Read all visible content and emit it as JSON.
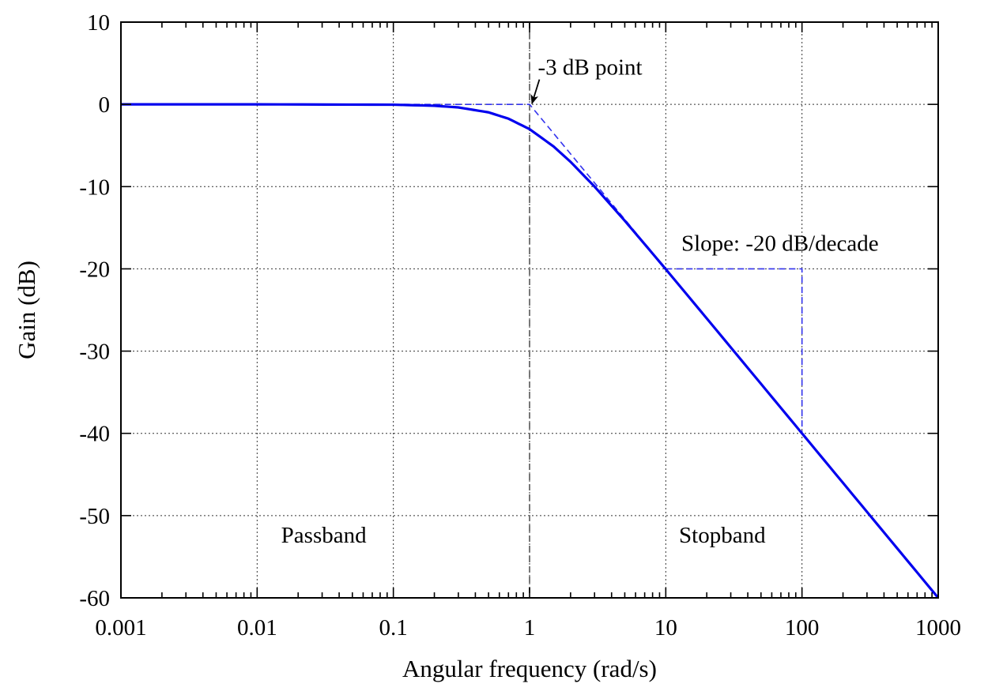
{
  "chart_data": {
    "type": "line",
    "xscale": "log",
    "xlabel": "Angular frequency (rad/s)",
    "ylabel": "Gain (dB)",
    "xlim": [
      0.001,
      1000
    ],
    "ylim": [
      -60,
      10
    ],
    "xticks": [
      0.001,
      0.01,
      0.1,
      1,
      10,
      100,
      1000
    ],
    "xtick_labels": [
      "0.001",
      "0.01",
      "0.1",
      "1",
      "10",
      "100",
      "1000"
    ],
    "yticks": [
      10,
      0,
      -10,
      -20,
      -30,
      -40,
      -50,
      -60
    ],
    "ytick_labels": [
      "10",
      "0",
      "-10",
      "-20",
      "-30",
      "-40",
      "-50",
      "-60"
    ],
    "grid": true,
    "series": [
      {
        "color": "#0000ee",
        "style": "solid",
        "x": [
          0.001,
          0.01,
          0.1,
          0.2,
          0.3,
          0.5,
          0.7,
          1,
          1.5,
          2,
          3,
          5,
          7,
          10,
          20,
          50,
          100,
          200,
          500,
          1000
        ],
        "y": [
          0,
          0,
          -0.04,
          -0.17,
          -0.37,
          -0.97,
          -1.74,
          -3.01,
          -5.12,
          -6.99,
          -10.0,
          -14.15,
          -17.0,
          -20.04,
          -26.03,
          -33.98,
          -40.0,
          -46.02,
          -53.98,
          -60.0
        ]
      }
    ],
    "reference_lines": [
      {
        "type": "vertical",
        "x": 1,
        "color": "#777777",
        "style": "dashed"
      }
    ],
    "asymptote": {
      "color": "#3333ee",
      "style": "dashed",
      "x": [
        0.1,
        1,
        10
      ],
      "y": [
        0,
        0,
        -20
      ]
    },
    "slope_triangle": {
      "color": "#3333ee",
      "style": "dashed",
      "x": [
        10,
        100,
        100
      ],
      "y": [
        -20,
        -20,
        -40
      ]
    },
    "annotations": [
      {
        "text": "-3 dB point",
        "x": 1.15,
        "y": 3.6,
        "arrow_to": [
          1,
          0
        ]
      },
      {
        "text": "Slope: -20 dB/decade",
        "x": 13,
        "y": -17.8
      },
      {
        "text": "Passband",
        "x": 0.015,
        "y": -53.3
      },
      {
        "text": "Stopband",
        "x": 12.5,
        "y": -53.3
      }
    ]
  }
}
